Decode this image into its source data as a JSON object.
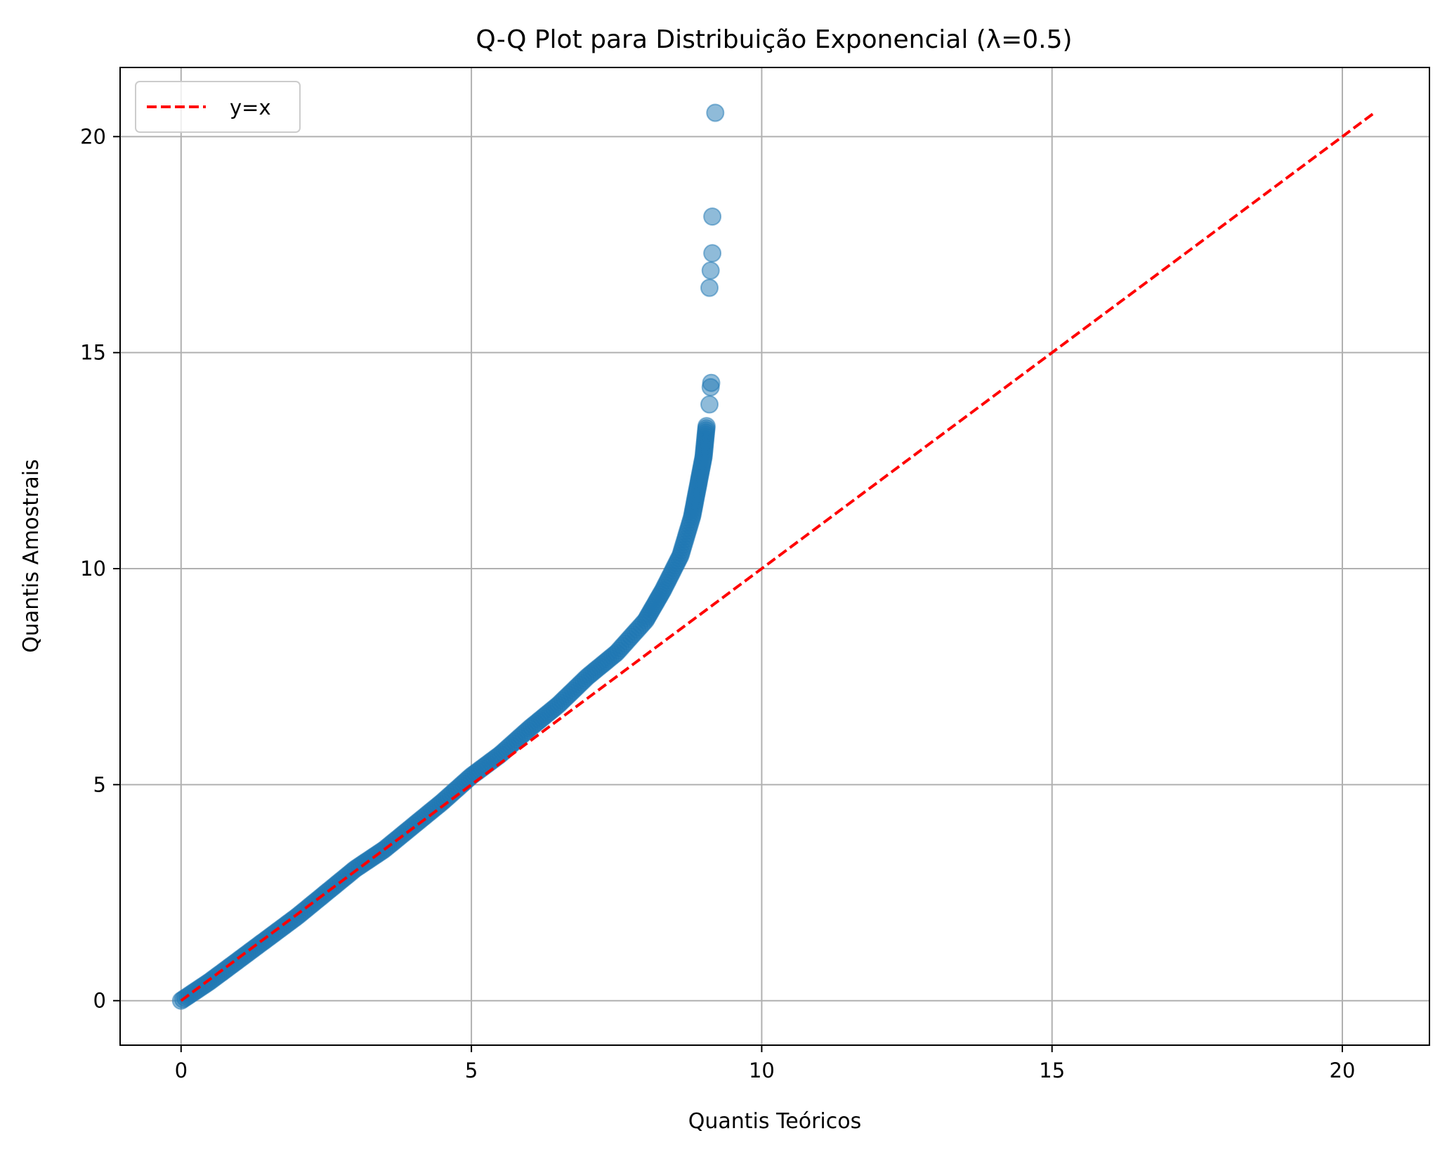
{
  "chart_data": {
    "type": "scatter",
    "title": "Q-Q Plot para Distribuição Exponencial (λ=0.5)",
    "xlabel": "Quantis Teóricos",
    "ylabel": "Quantis Amostrais",
    "xlim": [
      -1.05,
      21.5
    ],
    "ylim": [
      -1.03,
      21.6
    ],
    "xticks": [
      0,
      5,
      10,
      15,
      20
    ],
    "yticks": [
      0,
      5,
      10,
      15,
      20
    ],
    "grid": true,
    "legend": {
      "placement": "top-left",
      "entries": [
        "y=x"
      ]
    },
    "reference_line": {
      "label": "y=x",
      "x": [
        0,
        20.55
      ],
      "y": [
        0,
        20.55
      ],
      "color": "#ff0000",
      "style": "dashed"
    },
    "series": [
      {
        "color": "#1f77b4",
        "curve_points": [
          [
            0,
            0
          ],
          [
            0.5,
            0.45
          ],
          [
            1,
            0.95
          ],
          [
            1.5,
            1.45
          ],
          [
            2,
            1.95
          ],
          [
            2.5,
            2.5
          ],
          [
            3,
            3.05
          ],
          [
            3.5,
            3.5
          ],
          [
            4,
            4.05
          ],
          [
            4.5,
            4.6
          ],
          [
            5,
            5.2
          ],
          [
            5.5,
            5.7
          ],
          [
            6,
            6.3
          ],
          [
            6.5,
            6.85
          ],
          [
            7,
            7.5
          ],
          [
            7.5,
            8.05
          ],
          [
            8,
            8.8
          ],
          [
            8.3,
            9.5
          ],
          [
            8.6,
            10.3
          ],
          [
            8.8,
            11.2
          ],
          [
            8.9,
            11.9
          ],
          [
            9.0,
            12.6
          ],
          [
            9.05,
            13.3
          ]
        ],
        "tail_points": [
          [
            9.1,
            13.8
          ],
          [
            9.12,
            14.2
          ],
          [
            9.13,
            14.3
          ],
          [
            9.1,
            16.5
          ],
          [
            9.12,
            16.9
          ],
          [
            9.15,
            17.3
          ],
          [
            9.15,
            18.15
          ],
          [
            9.2,
            20.55
          ]
        ]
      }
    ]
  }
}
